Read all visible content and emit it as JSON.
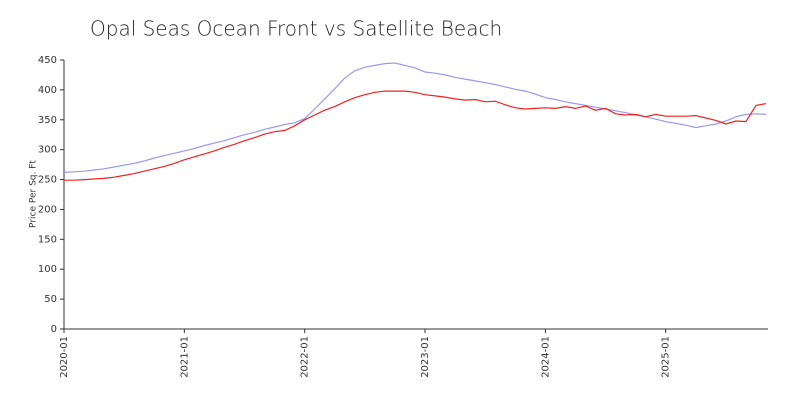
{
  "chart_data": {
    "type": "line",
    "title": "Opal Seas Ocean Front vs Satellite Beach",
    "y_label": "Price Per Sq. Ft",
    "x": [
      "2020-01",
      "2020-02",
      "2020-03",
      "2020-04",
      "2020-05",
      "2020-06",
      "2020-07",
      "2020-08",
      "2020-09",
      "2020-10",
      "2020-11",
      "2020-12",
      "2021-01",
      "2021-02",
      "2021-03",
      "2021-04",
      "2021-05",
      "2021-06",
      "2021-07",
      "2021-08",
      "2021-09",
      "2021-10",
      "2021-11",
      "2021-12",
      "2022-01",
      "2022-02",
      "2022-03",
      "2022-04",
      "2022-05",
      "2022-06",
      "2022-07",
      "2022-08",
      "2022-09",
      "2022-10",
      "2022-11",
      "2022-12",
      "2023-01",
      "2023-02",
      "2023-03",
      "2023-04",
      "2023-05",
      "2023-06",
      "2023-07",
      "2023-08",
      "2023-09",
      "2023-10",
      "2023-11",
      "2023-12",
      "2024-01",
      "2024-02",
      "2024-03",
      "2024-04",
      "2024-05",
      "2024-06",
      "2024-07",
      "2024-08",
      "2024-09",
      "2024-10",
      "2024-11",
      "2024-12",
      "2025-01",
      "2025-02",
      "2025-03",
      "2025-04",
      "2025-05",
      "2025-06",
      "2025-07",
      "2025-08",
      "2025-09",
      "2025-10",
      "2025-11"
    ],
    "series": [
      {
        "color": "#9999ee",
        "values": [
          262,
          263,
          264,
          266,
          268,
          271,
          274,
          277,
          281,
          286,
          290,
          294,
          298,
          302,
          307,
          311,
          315,
          320,
          325,
          329,
          334,
          338,
          342,
          345,
          352,
          368,
          385,
          402,
          420,
          432,
          438,
          441,
          444,
          445,
          441,
          437,
          430,
          428,
          425,
          421,
          418,
          415,
          412,
          409,
          405,
          401,
          398,
          393,
          387,
          384,
          380,
          377,
          374,
          371,
          368,
          365,
          362,
          358,
          355,
          351,
          347,
          344,
          341,
          337,
          340,
          343,
          348,
          355,
          359,
          360,
          359
        ]
      },
      {
        "color": "#ee2222",
        "values": [
          249,
          249,
          250,
          251,
          252,
          254,
          257,
          260,
          264,
          268,
          272,
          277,
          283,
          288,
          293,
          298,
          304,
          309,
          315,
          320,
          326,
          330,
          332,
          340,
          350,
          358,
          366,
          372,
          380,
          387,
          392,
          396,
          398,
          398,
          398,
          396,
          392,
          390,
          388,
          385,
          383,
          384,
          380,
          381,
          375,
          370,
          368,
          369,
          370,
          369,
          372,
          369,
          373,
          366,
          369,
          360,
          358,
          359,
          355,
          359,
          356,
          356,
          356,
          357,
          353,
          349,
          343,
          348,
          347,
          374,
          377
        ]
      }
    ],
    "ylim": [
      0,
      450
    ],
    "yticks": [
      0,
      50,
      100,
      150,
      200,
      250,
      300,
      350,
      400,
      450
    ],
    "xticks": [
      "2020-01",
      "2021-01",
      "2022-01",
      "2023-01",
      "2024-01",
      "2025-01"
    ]
  }
}
